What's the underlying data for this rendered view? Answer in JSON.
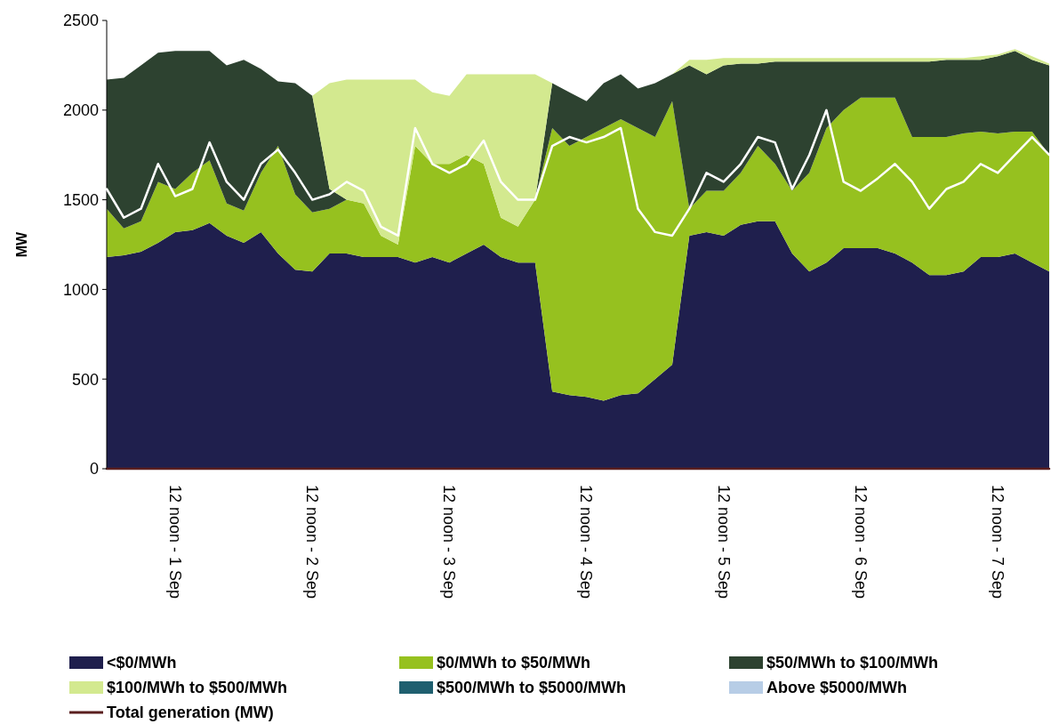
{
  "chart_data": {
    "type": "area",
    "stacked": true,
    "ylabel": "MW",
    "legend": "bottom",
    "grid": false,
    "categories": [
      null,
      null,
      null,
      null,
      "12 noon - 1 Sep",
      null,
      null,
      null,
      null,
      null,
      null,
      null,
      "12 noon - 2 Sep",
      null,
      null,
      null,
      null,
      null,
      null,
      null,
      "12 noon - 3 Sep",
      null,
      null,
      null,
      null,
      null,
      null,
      null,
      "12 noon - 4 Sep",
      null,
      null,
      null,
      null,
      null,
      null,
      null,
      "12 noon - 5 Sep",
      null,
      null,
      null,
      null,
      null,
      null,
      null,
      "12 noon - 6 Sep",
      null,
      null,
      null,
      null,
      null,
      null,
      null,
      "12 noon - 7 Sep",
      null,
      null,
      null
    ],
    "ylim": [
      0,
      2500
    ],
    "yticks": [
      0,
      500,
      1000,
      1500,
      2000,
      2500
    ],
    "series": [
      {
        "name": "<$0/MWh",
        "color": "#1f1f4d",
        "values": [
          1180,
          1190,
          1210,
          1260,
          1320,
          1330,
          1370,
          1300,
          1260,
          1320,
          1200,
          1110,
          1100,
          1200,
          1200,
          1180,
          1180,
          1180,
          1150,
          1180,
          1150,
          1200,
          1250,
          1180,
          1150,
          1150,
          430,
          410,
          400,
          380,
          410,
          420,
          500,
          580,
          1300,
          1320,
          1300,
          1360,
          1380,
          1380,
          1200,
          1100,
          1150,
          1230,
          1230,
          1230,
          1200,
          1150,
          1080,
          1080,
          1100,
          1180,
          1180,
          1200,
          1150,
          1100
        ]
      },
      {
        "name": "$0/MWh to $50/MWh",
        "color": "#96c11f",
        "values": [
          270,
          150,
          170,
          340,
          240,
          320,
          350,
          180,
          180,
          330,
          600,
          420,
          330,
          250,
          300,
          300,
          120,
          70,
          650,
          520,
          550,
          550,
          450,
          220,
          200,
          350,
          1470,
          1390,
          1450,
          1520,
          1540,
          1480,
          1350,
          1470,
          150,
          230,
          250,
          290,
          420,
          320,
          350,
          550,
          750,
          770,
          840,
          840,
          870,
          700,
          770,
          770,
          770,
          700,
          690,
          680,
          730,
          650
        ]
      },
      {
        "name": "$50/MWh to $100/MWh",
        "color": "#2d4230",
        "values": [
          720,
          840,
          870,
          720,
          770,
          680,
          610,
          770,
          840,
          580,
          360,
          620,
          650,
          110,
          0,
          0,
          0,
          0,
          0,
          0,
          0,
          0,
          0,
          0,
          0,
          0,
          250,
          300,
          200,
          250,
          250,
          220,
          300,
          150,
          800,
          650,
          700,
          610,
          460,
          570,
          720,
          620,
          370,
          270,
          200,
          200,
          200,
          420,
          420,
          430,
          410,
          400,
          430,
          450,
          400,
          500
        ]
      },
      {
        "name": "$100/MWh to $500/MWh",
        "color": "#d3e98f",
        "values": [
          0,
          0,
          0,
          0,
          0,
          0,
          0,
          0,
          0,
          0,
          0,
          0,
          0,
          590,
          670,
          690,
          870,
          920,
          370,
          400,
          380,
          450,
          500,
          800,
          850,
          700,
          0,
          0,
          0,
          0,
          0,
          0,
          0,
          0,
          30,
          80,
          40,
          30,
          30,
          20,
          20,
          20,
          20,
          20,
          20,
          20,
          20,
          20,
          20,
          10,
          10,
          20,
          10,
          10,
          20,
          10
        ]
      },
      {
        "name": "$500/MWh to $5000/MWh",
        "color": "#1f5f6f",
        "values": [
          null,
          null,
          null,
          null,
          null,
          null,
          null,
          null,
          null,
          null,
          null,
          null,
          null,
          null,
          null,
          null,
          null,
          null,
          null,
          null,
          null,
          null,
          null,
          null,
          null,
          null,
          null,
          null,
          null,
          null,
          null,
          null,
          null,
          null,
          null,
          null,
          null,
          null,
          null,
          null,
          null,
          null,
          null,
          null,
          null,
          null,
          null,
          null,
          null,
          null,
          null,
          null,
          null,
          null,
          null,
          null
        ]
      },
      {
        "name": "Above $5000/MWh",
        "color": "#b7cde6",
        "values": [
          null,
          null,
          null,
          null,
          null,
          null,
          null,
          null,
          null,
          null,
          null,
          null,
          null,
          null,
          null,
          null,
          null,
          null,
          null,
          null,
          null,
          null,
          null,
          null,
          null,
          null,
          null,
          null,
          null,
          null,
          null,
          null,
          null,
          null,
          null,
          null,
          null,
          null,
          null,
          null,
          null,
          null,
          null,
          null,
          null,
          null,
          null,
          null,
          null,
          null,
          null,
          null,
          null,
          null,
          null,
          null
        ]
      },
      {
        "name": "Total generation (MW)",
        "type": "line",
        "color": "#5a1e1e",
        "values": [
          0,
          0,
          0,
          0,
          0,
          0,
          0,
          0,
          0,
          0,
          0,
          0,
          0,
          0,
          0,
          0,
          0,
          0,
          0,
          0,
          0,
          0,
          0,
          0,
          0,
          0,
          0,
          0,
          0,
          0,
          0,
          0,
          0,
          0,
          0,
          0,
          0,
          0,
          0,
          0,
          0,
          0,
          0,
          0,
          0,
          0,
          0,
          0,
          0,
          0,
          0,
          0,
          0,
          0,
          0,
          0
        ]
      },
      {
        "type": "line",
        "color": "#ffffff",
        "values": [
          1560,
          1400,
          1450,
          1700,
          1520,
          1560,
          1820,
          1600,
          1500,
          1700,
          1780,
          1650,
          1500,
          1530,
          1600,
          1550,
          1350,
          1300,
          1900,
          1700,
          1650,
          1700,
          1830,
          1600,
          1500,
          1500,
          1800,
          1850,
          1820,
          1850,
          1900,
          1450,
          1320,
          1300,
          1450,
          1650,
          1600,
          1700,
          1850,
          1820,
          1560,
          1750,
          2000,
          1600,
          1550,
          1620,
          1700,
          1600,
          1450,
          1560,
          1600,
          1700,
          1650,
          1750,
          1850,
          1750
        ]
      }
    ]
  }
}
